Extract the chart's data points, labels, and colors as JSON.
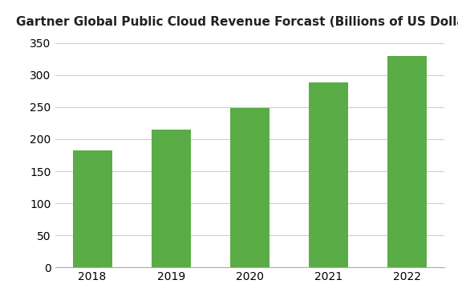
{
  "title": "Gartner Global Public Cloud Revenue Forcast (Billions of US Dollars)",
  "categories": [
    "2018",
    "2019",
    "2020",
    "2021",
    "2022"
  ],
  "values": [
    182,
    215,
    249,
    288,
    330
  ],
  "bar_color": "#5aac47",
  "ylim": [
    0,
    360
  ],
  "yticks": [
    0,
    50,
    100,
    150,
    200,
    250,
    300,
    350
  ],
  "background_color": "#ffffff",
  "grid_color": "#cccccc",
  "title_fontsize": 11,
  "tick_fontsize": 10,
  "bar_width": 0.5
}
